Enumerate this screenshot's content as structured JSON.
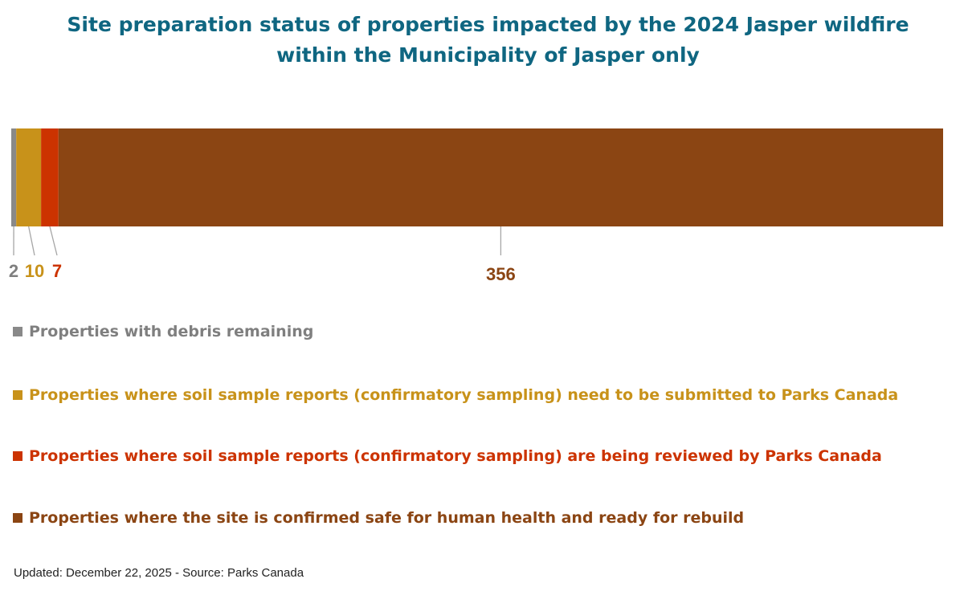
{
  "chart_data": {
    "type": "bar",
    "orientation": "horizontal",
    "stacked": true,
    "title": "Site preparation status of properties impacted by the 2024 Jasper wildfire within the Municipality of Jasper only",
    "title_lines": [
      "Site preparation status of properties impacted by the 2024 Jasper wildfire",
      "within the Municipality of Jasper only"
    ],
    "categories": [
      ""
    ],
    "series": [
      {
        "name": "Properties with debris remaining",
        "values": [
          2
        ],
        "color": "#898989",
        "label_color": "#7f7f7f"
      },
      {
        "name": "Properties where soil sample reports (confirmatory sampling) need to be submitted to Parks Canada",
        "values": [
          10
        ],
        "color": "#c8921a",
        "label_color": "#c8921a"
      },
      {
        "name": "Properties where soil sample reports (confirmatory sampling) are being reviewed by Parks Canada",
        "values": [
          7
        ],
        "color": "#cc3300",
        "label_color": "#cc3300"
      },
      {
        "name": "Properties where the site is confirmed safe for human health and ready for rebuild",
        "values": [
          356
        ],
        "color": "#8b4513",
        "label_color": "#8b4513"
      }
    ],
    "data_labels": [
      "2",
      "10",
      "7",
      "356"
    ],
    "legend_position": "bottom",
    "grid": false
  },
  "footer": "Updated: December 22, 2025  -  Source: Parks Canada"
}
